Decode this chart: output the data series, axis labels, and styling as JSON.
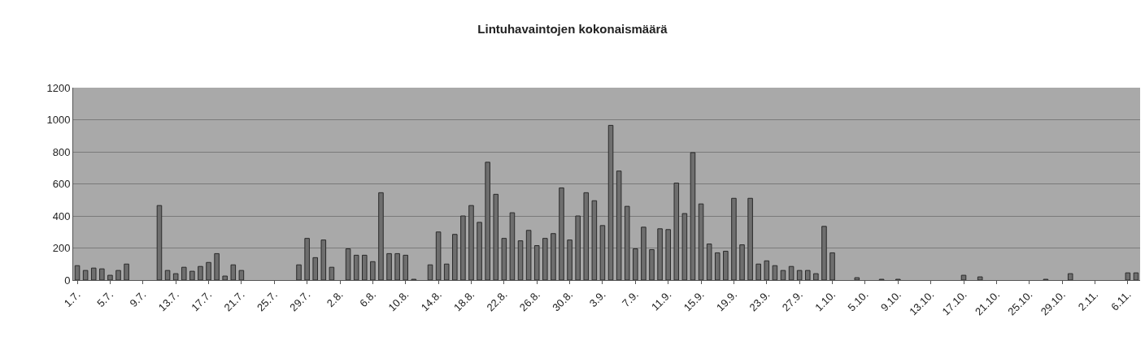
{
  "chart_data": {
    "type": "bar",
    "title": "Lintuhavaintojen kokonaismäärä",
    "categories": [
      "1.7.",
      null,
      null,
      null,
      "5.7.",
      null,
      null,
      null,
      "9.7.",
      null,
      null,
      null,
      "13.7.",
      null,
      null,
      null,
      "17.7.",
      null,
      null,
      null,
      "21.7.",
      null,
      null,
      null,
      "25.7.",
      null,
      null,
      null,
      "29.7.",
      null,
      null,
      null,
      "2.8.",
      null,
      null,
      null,
      "6.8.",
      null,
      null,
      null,
      "10.8.",
      null,
      null,
      null,
      "14.8.",
      null,
      null,
      null,
      "18.8.",
      null,
      null,
      null,
      "22.8.",
      null,
      null,
      null,
      "26.8.",
      null,
      null,
      null,
      "30.8.",
      null,
      null,
      null,
      "3.9.",
      null,
      null,
      null,
      "7.9.",
      null,
      null,
      null,
      "11.9.",
      null,
      null,
      null,
      "15.9.",
      null,
      null,
      null,
      "19.9.",
      null,
      null,
      null,
      "23.9.",
      null,
      null,
      null,
      "27.9.",
      null,
      null,
      null,
      "1.10.",
      null,
      null,
      null,
      "5.10.",
      null,
      null,
      null,
      "9.10.",
      null,
      null,
      null,
      "13.10.",
      null,
      null,
      null,
      "17.10.",
      null,
      null,
      null,
      "21.10.",
      null,
      null,
      null,
      "25.10.",
      null,
      null,
      null,
      "29.10.",
      null,
      null,
      null,
      "2.11.",
      null,
      null,
      null,
      "6.11.",
      null
    ],
    "values": [
      90,
      60,
      75,
      70,
      30,
      60,
      100,
      null,
      null,
      null,
      465,
      60,
      40,
      80,
      55,
      85,
      110,
      165,
      25,
      95,
      60,
      null,
      null,
      null,
      null,
      null,
      null,
      95,
      260,
      140,
      250,
      80,
      null,
      195,
      155,
      155,
      115,
      545,
      165,
      165,
      155,
      5,
      null,
      95,
      300,
      100,
      285,
      400,
      465,
      360,
      735,
      535,
      260,
      420,
      245,
      310,
      215,
      260,
      290,
      575,
      250,
      400,
      545,
      495,
      340,
      965,
      680,
      460,
      195,
      330,
      190,
      320,
      315,
      605,
      415,
      795,
      475,
      225,
      170,
      180,
      510,
      220,
      510,
      100,
      120,
      90,
      60,
      85,
      60,
      60,
      40,
      335,
      170,
      null,
      null,
      15,
      null,
      null,
      5,
      null,
      5,
      null,
      null,
      null,
      null,
      null,
      null,
      null,
      30,
      null,
      20,
      null,
      null,
      null,
      null,
      null,
      null,
      null,
      5,
      null,
      null,
      40,
      null,
      null,
      null,
      null,
      null,
      null,
      45,
      45
    ],
    "color": "#6e6e6e",
    "ylim": [
      0,
      1200
    ],
    "yticks": [
      0,
      200,
      400,
      600,
      800,
      1000,
      1200
    ],
    "grid": "y"
  }
}
